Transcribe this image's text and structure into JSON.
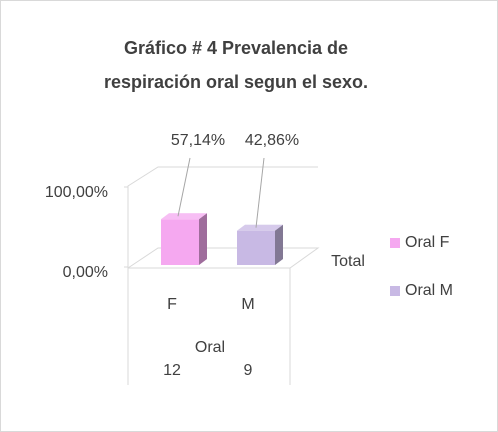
{
  "chart_data": {
    "type": "bar3d",
    "title": [
      "Gráfico # 4 Prevalencia  de",
      "respiración oral segun el sexo."
    ],
    "categories": [
      "F",
      "M"
    ],
    "values": [
      57.14,
      42.86
    ],
    "value_labels": [
      "57,14%",
      "42,86%"
    ],
    "colors": [
      "#f5a8f0",
      "#c8b9e4"
    ],
    "legend": [
      "Oral F",
      "Oral M"
    ],
    "depth_label": "Total",
    "group_label": "Oral",
    "counts": [
      12,
      9
    ],
    "ylim": [
      0,
      100
    ],
    "yticks": [
      {
        "value": 0,
        "label": "0,00%"
      },
      {
        "value": 100,
        "label": "100,00%"
      }
    ]
  }
}
